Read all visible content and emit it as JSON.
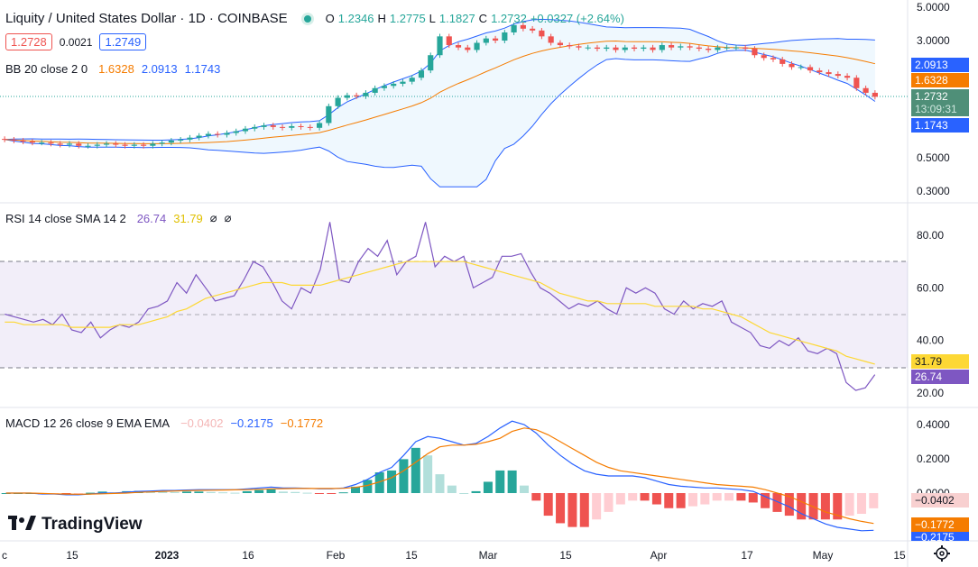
{
  "header": {
    "title": "Liquity / United States Dollar · 1D · COINBASE",
    "ohlc": {
      "o_label": "O",
      "o": "1.2346",
      "h_label": "H",
      "h": "1.2775",
      "l_label": "L",
      "l": "1.1827",
      "c_label": "C",
      "c": "1.2732",
      "change": "+0.0327 (+2.64%)"
    },
    "sell_price": "1.2728",
    "spread": "0.0021",
    "buy_price": "1.2749"
  },
  "bb_legend": {
    "label": "BB 20 close 2 0",
    "basis": "1.6328",
    "upper": "2.0913",
    "lower": "1.1743"
  },
  "rsi_legend": {
    "label": "RSI 14 close SMA 14 2",
    "rsi": "26.74",
    "sma": "31.79",
    "x1": "⌀",
    "x2": "⌀"
  },
  "macd_legend": {
    "label": "MACD 12 26 close 9 EMA EMA",
    "hist": "−0.0402",
    "macd": "−0.2175",
    "signal": "−0.1772"
  },
  "price_tags": {
    "upper": "2.0913",
    "basis": "1.6328",
    "last": "1.2732",
    "countdown": "13:09:31",
    "lower": "1.1743"
  },
  "rsi_tags": {
    "sma": "31.79",
    "rsi": "26.74"
  },
  "macd_tags": {
    "hist": "−0.0402",
    "signal": "−0.1772",
    "macd": "−0.2175"
  },
  "logo_text": "TradingView",
  "colors": {
    "up": "#26a69a",
    "down": "#ef5350",
    "bb_band": "#2962ff",
    "bb_basis": "#f57c00",
    "rsi": "#7e57c2",
    "rsi_sma": "#fdd835",
    "macd": "#2962ff",
    "signal": "#f57c00"
  },
  "chart_data": [
    {
      "type": "candlestick",
      "title": "Liquity / United States Dollar · 1D · COINBASE",
      "scale": "log",
      "y_ticks": [
        5.0,
        3.0,
        2.0,
        1.0,
        0.5,
        0.3
      ],
      "y_tick_labels": [
        "5.0000",
        "3.0000",
        "2.0000",
        "1.0000",
        "0.5000",
        "0.3000"
      ],
      "x_tick_labels": [
        "c",
        "15",
        "2023",
        "16",
        "Feb",
        "15",
        "Mar",
        "15",
        "Apr",
        "17",
        "May",
        "15"
      ],
      "series_close": [
        0.66,
        0.65,
        0.64,
        0.63,
        0.63,
        0.62,
        0.61,
        0.62,
        0.6,
        0.6,
        0.61,
        0.62,
        0.61,
        0.6,
        0.61,
        0.6,
        0.62,
        0.63,
        0.65,
        0.66,
        0.68,
        0.7,
        0.72,
        0.71,
        0.73,
        0.75,
        0.78,
        0.8,
        0.82,
        0.8,
        0.79,
        0.81,
        0.8,
        0.79,
        0.85,
        1.1,
        1.25,
        1.3,
        1.28,
        1.35,
        1.45,
        1.5,
        1.55,
        1.6,
        1.7,
        1.9,
        2.4,
        3.2,
        2.8,
        2.7,
        2.6,
        2.9,
        3.1,
        3.0,
        3.4,
        3.8,
        3.6,
        3.5,
        3.2,
        2.9,
        2.8,
        2.75,
        2.7,
        2.7,
        2.65,
        2.7,
        2.6,
        2.7,
        2.65,
        2.7,
        2.6,
        2.8,
        2.7,
        2.75,
        2.7,
        2.65,
        2.6,
        2.7,
        2.7,
        2.7,
        2.65,
        2.4,
        2.3,
        2.25,
        2.1,
        2.0,
        2.0,
        1.9,
        1.85,
        1.8,
        1.75,
        1.7,
        1.45,
        1.35,
        1.27
      ],
      "bollinger": {
        "upper_last": 2.0913,
        "basis_last": 1.6328,
        "lower_last": 1.1743
      },
      "last_price": 1.2732
    },
    {
      "type": "line",
      "title": "RSI 14 close SMA 14 2",
      "y_ticks": [
        80,
        60,
        40,
        20
      ],
      "bands": [
        70,
        50,
        30
      ],
      "ylim": [
        15,
        90
      ],
      "series": [
        {
          "name": "RSI",
          "values": [
            50,
            49,
            48,
            47,
            48,
            46,
            50,
            44,
            43,
            47,
            41,
            44,
            46,
            45,
            47,
            52,
            53,
            55,
            62,
            58,
            65,
            60,
            55,
            56,
            57,
            63,
            70,
            68,
            62,
            55,
            52,
            60,
            58,
            67,
            85,
            63,
            62,
            70,
            75,
            72,
            78,
            65,
            70,
            72,
            85,
            68,
            72,
            70,
            72,
            60,
            62,
            64,
            72,
            72,
            73,
            66,
            60,
            58,
            55,
            52,
            54,
            53,
            55,
            52,
            50,
            60,
            58,
            60,
            58,
            52,
            50,
            55,
            52,
            54,
            53,
            55,
            47,
            45,
            43,
            38,
            37,
            40,
            38,
            41,
            36,
            35,
            37,
            35,
            24,
            21,
            22,
            27
          ],
          "last": 26.74
        },
        {
          "name": "SMA",
          "values": [
            47,
            47,
            46,
            46,
            46,
            46,
            46,
            45,
            45,
            45,
            45,
            45,
            46,
            46,
            46,
            47,
            48,
            49,
            51,
            52,
            54,
            56,
            57,
            58,
            59,
            60,
            61,
            62,
            62,
            62,
            61,
            61,
            61,
            61,
            62,
            63,
            64,
            65,
            66,
            67,
            68,
            69,
            70,
            70,
            70,
            70,
            70,
            70,
            70,
            69,
            68,
            67,
            66,
            65,
            64,
            63,
            62,
            60,
            58,
            57,
            56,
            55,
            55,
            54,
            54,
            54,
            54,
            54,
            53,
            53,
            53,
            53,
            53,
            52,
            52,
            51,
            50,
            49,
            47,
            45,
            43,
            42,
            41,
            40,
            39,
            38,
            37,
            36,
            34,
            33,
            32,
            31
          ],
          "last": 31.79
        }
      ]
    },
    {
      "type": "line",
      "title": "MACD 12 26 close 9 EMA EMA",
      "y_ticks": [
        0.4,
        0.2,
        0.0
      ],
      "y_tick_labels": [
        "0.4000",
        "0.2000",
        "0.0000"
      ],
      "ylim": [
        -0.28,
        0.48
      ],
      "series": [
        {
          "name": "MACD",
          "values": [
            0.0,
            0.0,
            0.0,
            -0.005,
            -0.005,
            -0.01,
            -0.01,
            -0.005,
            0.0,
            0.0,
            0.005,
            0.01,
            0.012,
            0.015,
            0.015,
            0.018,
            0.02,
            0.02,
            0.02,
            0.02,
            0.025,
            0.03,
            0.035,
            0.03,
            0.03,
            0.028,
            0.025,
            0.025,
            0.03,
            0.05,
            0.08,
            0.12,
            0.15,
            0.22,
            0.3,
            0.33,
            0.32,
            0.3,
            0.28,
            0.29,
            0.33,
            0.38,
            0.42,
            0.4,
            0.35,
            0.28,
            0.22,
            0.17,
            0.13,
            0.11,
            0.1,
            0.1,
            0.1,
            0.09,
            0.07,
            0.05,
            0.04,
            0.035,
            0.03,
            0.03,
            0.025,
            0.02,
            0.01,
            -0.02,
            -0.05,
            -0.08,
            -0.12,
            -0.15,
            -0.18,
            -0.2,
            -0.21,
            -0.22,
            -0.2175
          ],
          "last": -0.2175
        },
        {
          "name": "Signal",
          "values": [
            0.0,
            0.0,
            0.0,
            -0.002,
            -0.004,
            -0.006,
            -0.007,
            -0.006,
            -0.004,
            -0.002,
            0.0,
            0.004,
            0.007,
            0.01,
            0.012,
            0.014,
            0.016,
            0.017,
            0.018,
            0.019,
            0.02,
            0.022,
            0.025,
            0.026,
            0.027,
            0.027,
            0.027,
            0.027,
            0.028,
            0.033,
            0.045,
            0.065,
            0.09,
            0.13,
            0.18,
            0.23,
            0.27,
            0.28,
            0.28,
            0.285,
            0.3,
            0.32,
            0.36,
            0.38,
            0.37,
            0.34,
            0.3,
            0.26,
            0.22,
            0.18,
            0.15,
            0.13,
            0.12,
            0.11,
            0.1,
            0.09,
            0.08,
            0.07,
            0.06,
            0.05,
            0.045,
            0.04,
            0.035,
            0.02,
            0.0,
            -0.02,
            -0.05,
            -0.08,
            -0.11,
            -0.13,
            -0.15,
            -0.165,
            -0.1772
          ],
          "last": -0.1772
        }
      ],
      "histogram_last": -0.0402
    }
  ]
}
